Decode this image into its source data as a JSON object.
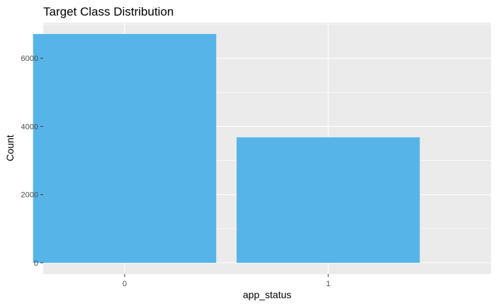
{
  "chart_data": {
    "type": "bar",
    "title": "Target Class Distribution",
    "xlabel": "app_status",
    "ylabel": "Count",
    "categories": [
      "0",
      "1"
    ],
    "values": [
      6710,
      3680
    ],
    "ylim": [
      0,
      6710
    ],
    "yticks": [
      0,
      2000,
      4000,
      6000
    ],
    "grid": true,
    "colors": {
      "bar": "#56B4E9",
      "panel": "#EBEBEB",
      "grid": "#FFFFFF",
      "tick_text": "#4D4D4D",
      "tick_mark": "#333333"
    }
  }
}
